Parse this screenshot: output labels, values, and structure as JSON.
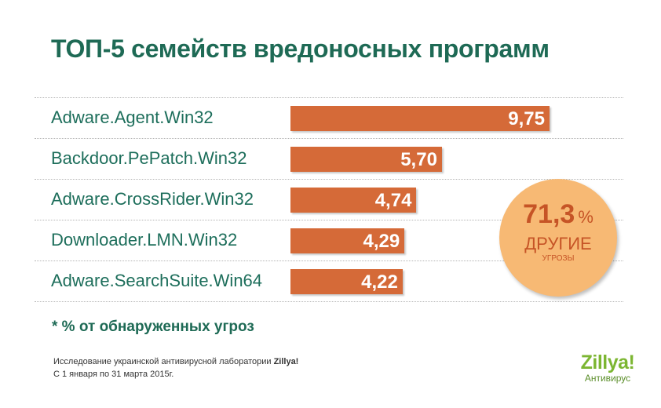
{
  "title": "ТОП-5 семейств вредоносных программ",
  "chart_data": {
    "type": "bar",
    "orientation": "horizontal",
    "title": "ТОП-5 семейств вредоносных программ",
    "categories": [
      "Adware.Agent.Win32",
      "Backdoor.PePatch.Win32",
      "Adware.CrossRider.Win32",
      "Downloader.LMN.Win32",
      "Adware.SearchSuite.Win64"
    ],
    "values": [
      9.75,
      5.7,
      4.74,
      4.29,
      4.22
    ],
    "value_labels": [
      "9,75",
      "5,70",
      "4,74",
      "4,29",
      "4,22"
    ],
    "bar_color": "#d56a38",
    "grid": false
  },
  "callout": {
    "value": "71,3",
    "unit": "%",
    "label": "ДРУГИЕ",
    "sublabel": "УГРОЗЫ",
    "color": "#f7b974",
    "text_color": "#c65426"
  },
  "footnote": "* % от обнаруженных угроз",
  "source": {
    "line1_prefix": "Исследование украинской антивирусной лаборатории ",
    "line1_brand": "Zillya!",
    "line2": "С 1 января по 31 марта 2015г."
  },
  "logo": {
    "name": "Zillya!",
    "subtitle": "Антивирус",
    "color": "#7cb632"
  },
  "colors": {
    "title": "#1e6a55",
    "label": "#1d6e5b"
  }
}
